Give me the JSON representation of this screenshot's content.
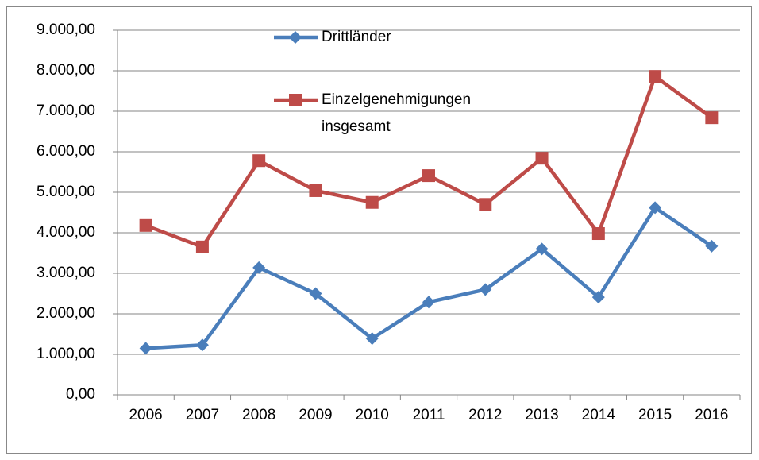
{
  "chart_data": {
    "type": "line",
    "categories": [
      "2006",
      "2007",
      "2008",
      "2009",
      "2010",
      "2011",
      "2012",
      "2013",
      "2014",
      "2015",
      "2016"
    ],
    "series": [
      {
        "name": "Drittländer",
        "color": "#4a7ebb",
        "marker": "diamond",
        "values": [
          1150,
          1230,
          3140,
          2500,
          1390,
          2290,
          2600,
          3600,
          2410,
          4620,
          3670
        ]
      },
      {
        "name": "Einzelgenehmigungen insgesamt",
        "color": "#be4b48",
        "marker": "square",
        "values": [
          4180,
          3650,
          5780,
          5040,
          4750,
          5410,
          4700,
          5840,
          3980,
          7860,
          6840
        ]
      }
    ],
    "ylim": [
      0,
      9000
    ],
    "yticks": [
      {
        "value": 0,
        "label": "0,00"
      },
      {
        "value": 1000,
        "label": "1.000,00"
      },
      {
        "value": 2000,
        "label": "2.000,00"
      },
      {
        "value": 3000,
        "label": "3.000,00"
      },
      {
        "value": 4000,
        "label": "4.000,00"
      },
      {
        "value": 5000,
        "label": "5.000,00"
      },
      {
        "value": 6000,
        "label": "6.000,00"
      },
      {
        "value": 7000,
        "label": "7.000,00"
      },
      {
        "value": 8000,
        "label": "8.000,00"
      },
      {
        "value": 9000,
        "label": "9.000,00"
      }
    ],
    "grid": true
  }
}
